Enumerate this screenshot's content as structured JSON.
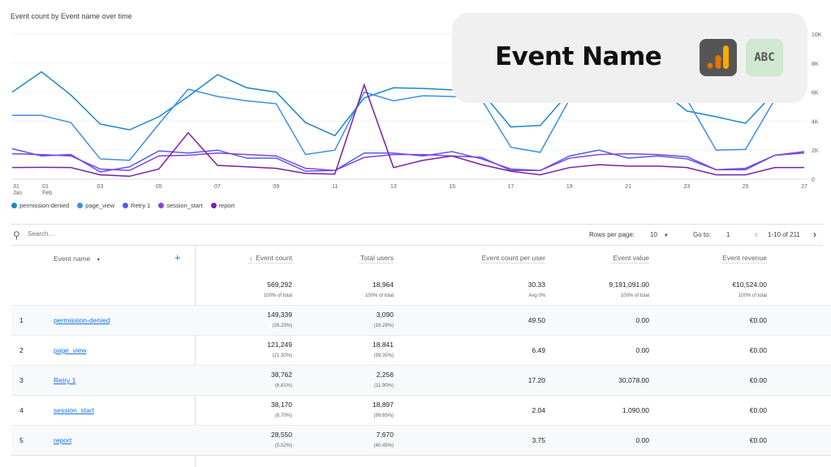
{
  "chart_data": {
    "type": "line",
    "title": "Event count by Event name over time",
    "x": [
      "31 Jan",
      "01 Feb",
      "02",
      "03",
      "04",
      "05",
      "06",
      "07",
      "08",
      "09",
      "10",
      "11",
      "12",
      "13",
      "14",
      "15",
      "16",
      "17",
      "18",
      "19",
      "20",
      "21",
      "22",
      "23",
      "24",
      "25",
      "26",
      "27"
    ],
    "x_tick_labels": [
      [
        "31",
        "Jan"
      ],
      [
        "01",
        "Feb"
      ],
      [
        "03",
        ""
      ],
      [
        "05",
        ""
      ],
      [
        "07",
        ""
      ],
      [
        "09",
        ""
      ],
      [
        "11",
        ""
      ],
      [
        "13",
        ""
      ],
      [
        "15",
        ""
      ],
      [
        "17",
        ""
      ],
      [
        "19",
        ""
      ],
      [
        "21",
        ""
      ],
      [
        "23",
        ""
      ],
      [
        "25",
        ""
      ],
      [
        "27",
        ""
      ]
    ],
    "x_tick_index": [
      0,
      1,
      3,
      5,
      7,
      9,
      11,
      13,
      15,
      17,
      19,
      21,
      23,
      25,
      27
    ],
    "y_ticks": [
      "0",
      "2K",
      "4K",
      "6K",
      "8K",
      "10K"
    ],
    "ylim": [
      0,
      10000
    ],
    "grid": true,
    "legend_placement": "bottom-left",
    "series": [
      {
        "name": "permission-denied",
        "color": "#1a86c7",
        "values": [
          6000,
          7400,
          5800,
          3800,
          3400,
          4300,
          5700,
          7200,
          6300,
          6000,
          3900,
          3000,
          5600,
          6300,
          6250,
          6150,
          6000,
          3600,
          3700,
          6000,
          6500,
          6500,
          6300,
          4700,
          4300,
          3850,
          6000,
          7500
        ]
      },
      {
        "name": "page_view",
        "color": "#3b8eea",
        "values": [
          4400,
          4400,
          3900,
          1400,
          1300,
          3800,
          6200,
          5700,
          5400,
          5200,
          1700,
          2000,
          6000,
          5400,
          5750,
          5700,
          5500,
          2200,
          1850,
          5500,
          6000,
          6000,
          5800,
          5500,
          2000,
          2050,
          5500,
          7000
        ]
      },
      {
        "name": "Retry 1",
        "color": "#4f5de8",
        "values": [
          2100,
          1600,
          1700,
          500,
          850,
          1950,
          1800,
          2000,
          1450,
          1450,
          550,
          600,
          1800,
          1800,
          1600,
          1900,
          1400,
          700,
          600,
          1600,
          2000,
          1450,
          1600,
          1400,
          650,
          750,
          1650,
          1800
        ]
      },
      {
        "name": "session_start",
        "color": "#8a3fd8",
        "values": [
          1750,
          1700,
          1600,
          700,
          600,
          1600,
          1650,
          1800,
          1700,
          1600,
          750,
          600,
          1500,
          1700,
          1700,
          1600,
          1500,
          600,
          600,
          1450,
          1700,
          1750,
          1700,
          1550,
          650,
          650,
          1650,
          1900
        ]
      },
      {
        "name": "report",
        "color": "#7b1fa2",
        "values": [
          800,
          820,
          800,
          300,
          200,
          700,
          3200,
          950,
          850,
          750,
          400,
          350,
          6500,
          800,
          1300,
          1600,
          1000,
          550,
          300,
          800,
          1000,
          900,
          900,
          800,
          300,
          300,
          800,
          800
        ]
      }
    ]
  },
  "overlay": {
    "title": "Event Name",
    "icon_ga": "analytics-logo-icon",
    "icon_abc": "text-abc-icon",
    "ga_bg": "#555555",
    "abc_bg": "#cfe8cf",
    "abc_label": "ABC"
  },
  "toolbar": {
    "search_placeholder": "Search...",
    "rows_per_page_label": "Rows per page:",
    "rows_per_page_value": "10",
    "goto_label": "Go to:",
    "goto_value": "1",
    "range": "1-10 of 211"
  },
  "table": {
    "dimension_header": "Event name",
    "columns": [
      "Event count",
      "Total users",
      "Event count per user",
      "Event value",
      "Event revenue"
    ],
    "totals": {
      "values": [
        "569,292",
        "18,964",
        "30.33",
        "9,191,091.00",
        "€10,524.00"
      ],
      "subs": [
        "100% of total",
        "100% of total",
        "Avg 0%",
        "100% of total",
        "100% of total"
      ]
    },
    "rows": [
      {
        "rank": "1",
        "name": "permission-denied",
        "count": "149,339",
        "count_pct": "(26.23%)",
        "users": "3,090",
        "users_pct": "(16.29%)",
        "per_user": "49.50",
        "value": "0.00",
        "revenue": "€0.00"
      },
      {
        "rank": "2",
        "name": "page_view",
        "count": "121,249",
        "count_pct": "(21.30%)",
        "users": "18,841",
        "users_pct": "(99.35%)",
        "per_user": "6.49",
        "value": "0.00",
        "revenue": "€0.00"
      },
      {
        "rank": "3",
        "name": "Retry 1",
        "count": "38,762",
        "count_pct": "(6.81%)",
        "users": "2,256",
        "users_pct": "(11.90%)",
        "per_user": "17.20",
        "value": "30,078.00",
        "revenue": "€0.00"
      },
      {
        "rank": "4",
        "name": "session_start",
        "count": "38,170",
        "count_pct": "(6.70%)",
        "users": "18,897",
        "users_pct": "(99.65%)",
        "per_user": "2.04",
        "value": "1,090.00",
        "revenue": "€0.00"
      },
      {
        "rank": "5",
        "name": "report",
        "count": "28,550",
        "count_pct": "(5.02%)",
        "users": "7,670",
        "users_pct": "(40.45%)",
        "per_user": "3.75",
        "value": "0.00",
        "revenue": "€0.00"
      }
    ]
  }
}
